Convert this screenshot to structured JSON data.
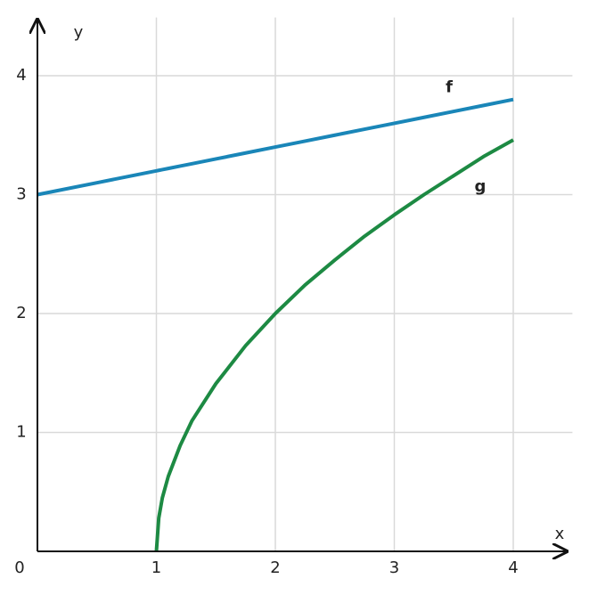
{
  "chart_data": {
    "type": "line",
    "x_label": "x",
    "y_label": "y",
    "x": [
      0,
      0.5,
      1,
      1.02,
      1.05,
      1.1,
      1.2,
      1.3,
      1.5,
      1.75,
      2,
      2.25,
      2.5,
      2.75,
      3,
      3.25,
      3.5,
      3.75,
      4
    ],
    "series": [
      {
        "name": "f",
        "color": "#1a86b8",
        "values": [
          3,
          3.1,
          3.2,
          3.204,
          3.21,
          3.22,
          3.24,
          3.26,
          3.3,
          3.35,
          3.4,
          3.45,
          3.5,
          3.55,
          3.6,
          3.65,
          3.7,
          3.75,
          3.8
        ]
      },
      {
        "name": "g",
        "color": "#1d8a43",
        "values": [
          null,
          null,
          0,
          0.28,
          0.45,
          0.63,
          0.89,
          1.1,
          1.41,
          1.73,
          2,
          2.24,
          2.45,
          2.65,
          2.83,
          3,
          3.16,
          3.32,
          3.46
        ]
      }
    ],
    "xlim": [
      0,
      4.46
    ],
    "ylim": [
      0,
      4.49
    ],
    "xticks": [
      0,
      1,
      2,
      3,
      4
    ],
    "yticks": [
      1,
      2,
      3,
      4
    ],
    "grid": true
  }
}
